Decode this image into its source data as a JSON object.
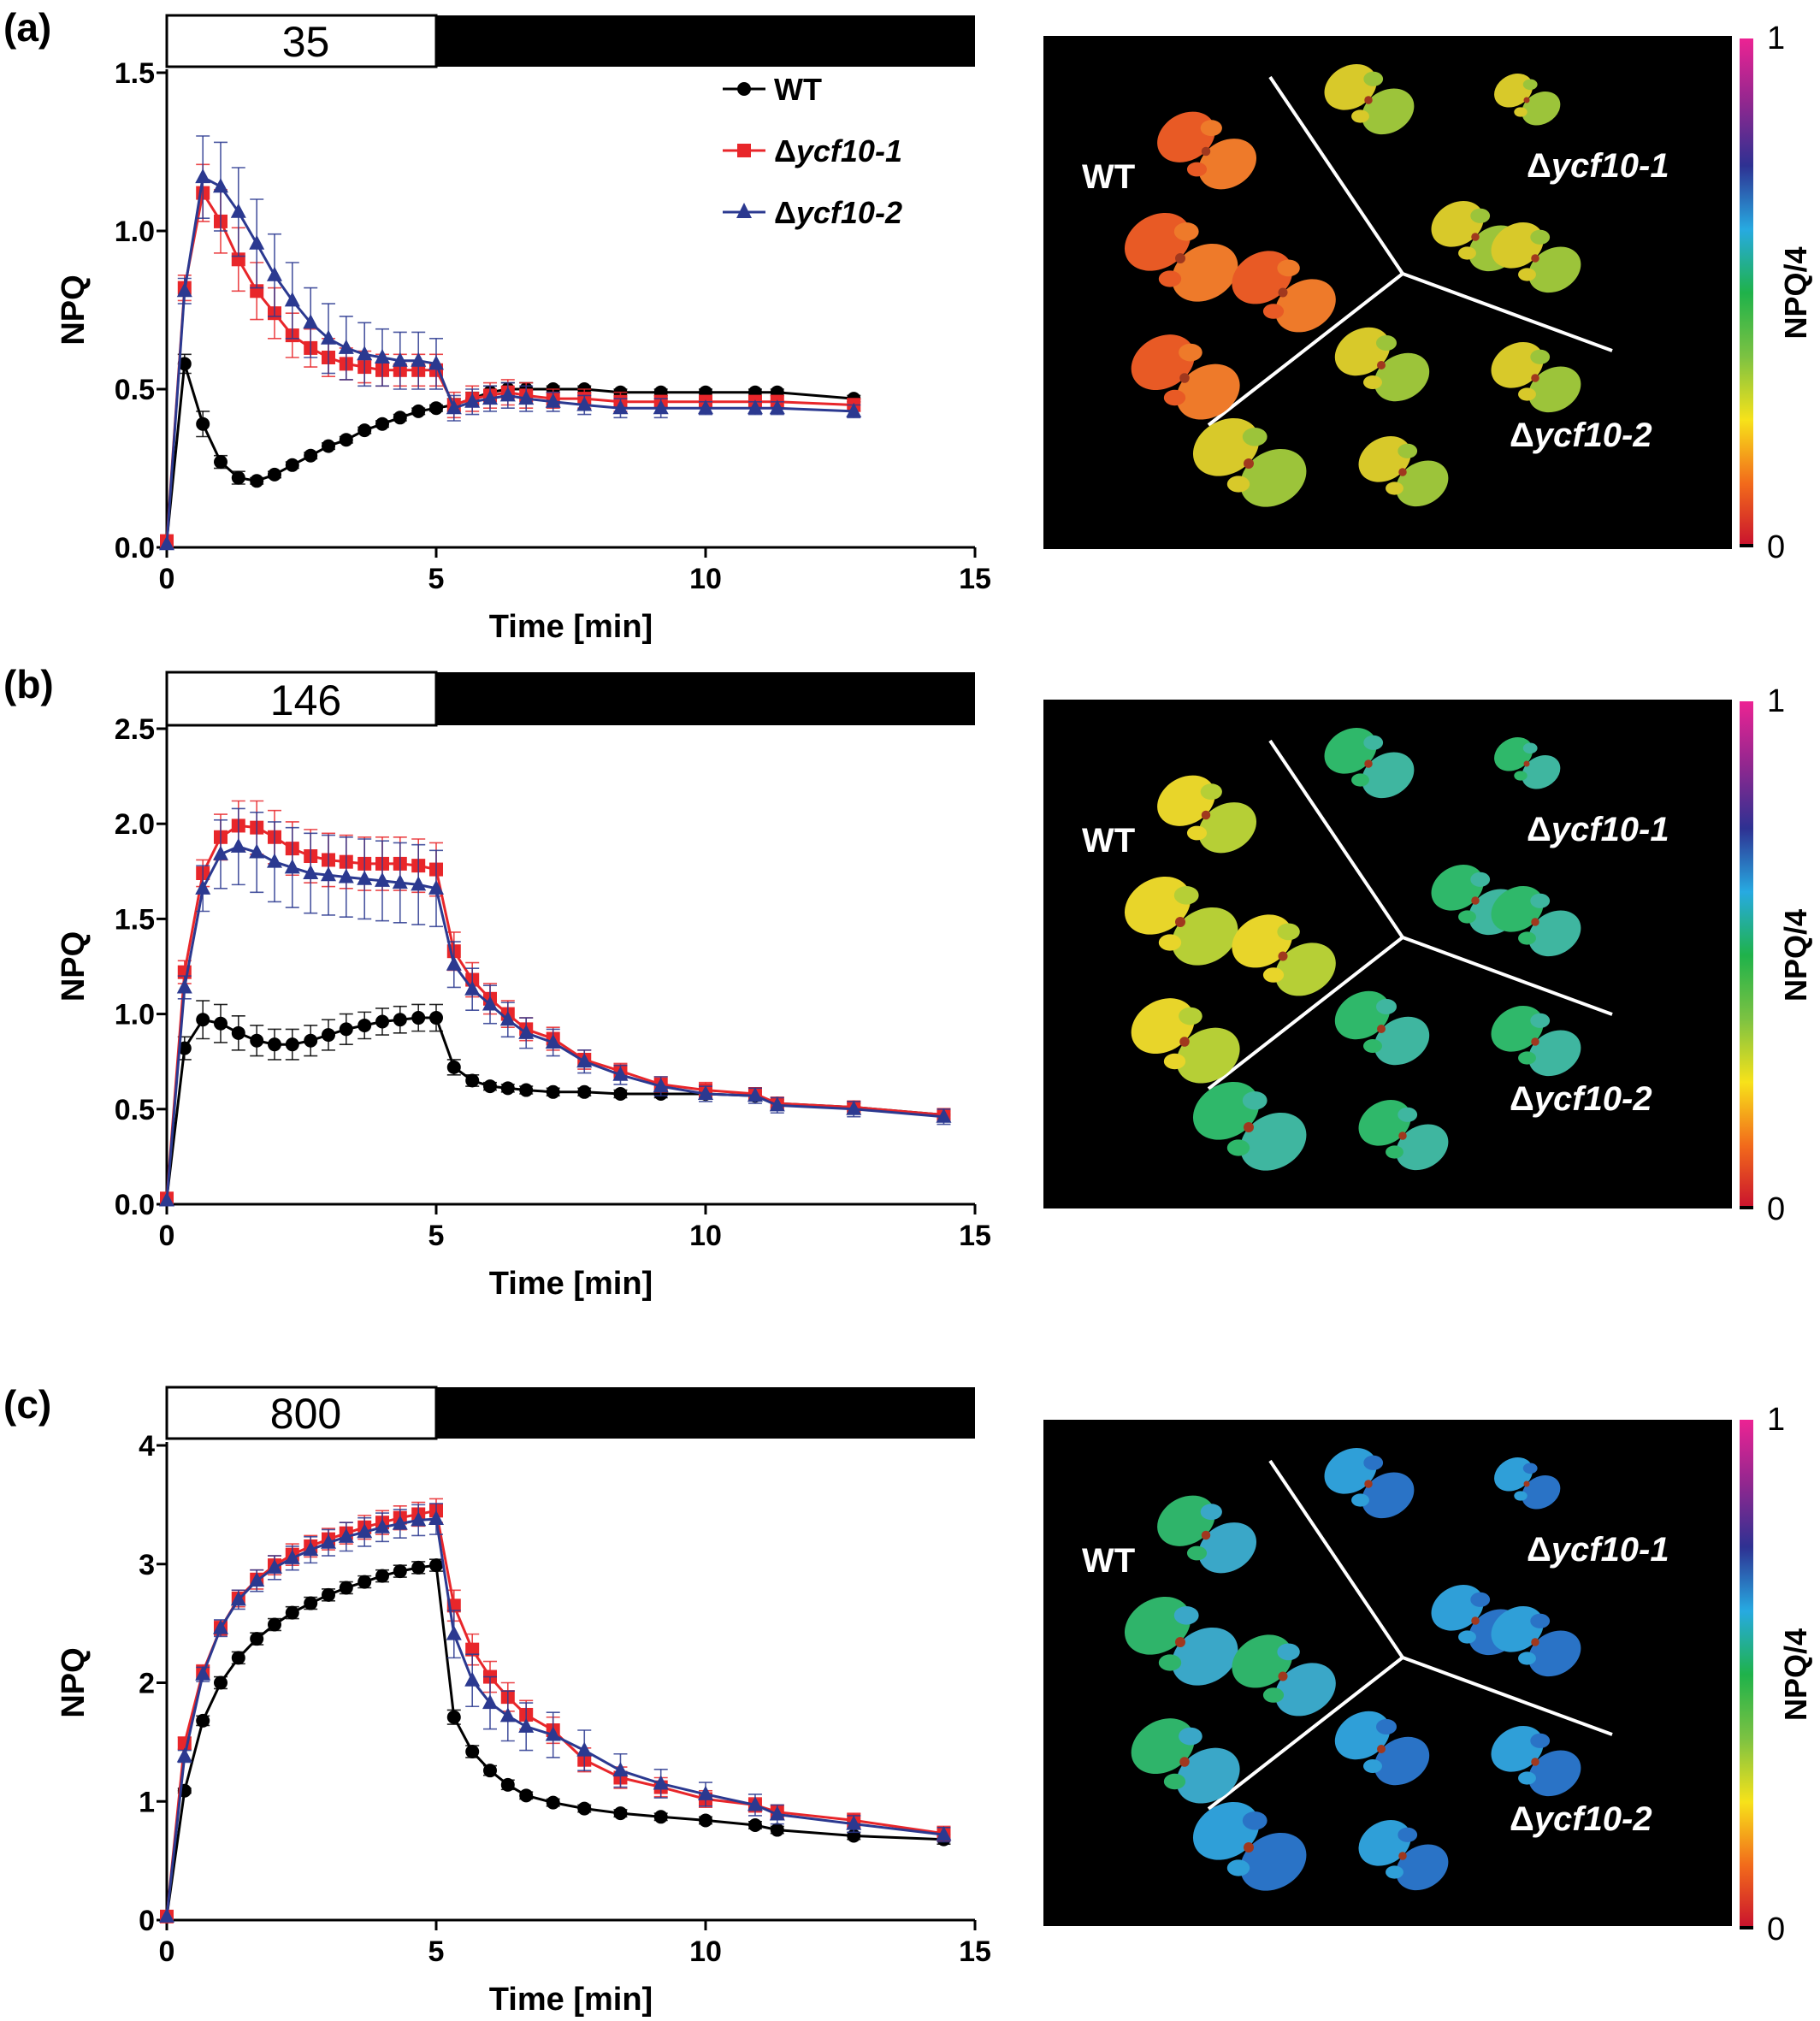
{
  "figure": {
    "colors": {
      "wt": "#000000",
      "ycf1": "#e8262a",
      "ycf2": "#2b3990",
      "background": "#ffffff"
    },
    "legend": [
      {
        "prefix": "",
        "text": "WT",
        "series": "wt"
      },
      {
        "prefix": "Δ",
        "text": "ycf10-1",
        "series": "ycf1"
      },
      {
        "prefix": "Δ",
        "text": "ycf10-2",
        "series": "ycf2"
      }
    ],
    "image_labels": {
      "wt": "WT",
      "ycf1": "Δycf10-1",
      "ycf2": "Δycf10-2"
    },
    "colorbar": {
      "label": "NPQ/4",
      "max_label": "1",
      "min_label": "0",
      "scale": [
        "#c8102e",
        "#f26a1b",
        "#f7e21a",
        "#7cc242",
        "#1fb24a",
        "#27aae1",
        "#2e3192",
        "#92278f",
        "#ec2393"
      ]
    }
  },
  "panels": [
    {
      "letter": "(a)",
      "light_label": "35",
      "image_palette": {
        "wt": [
          "#e85a25",
          "#ee7a2a"
        ],
        "mutant": [
          "#d8c92a",
          "#9cc43a"
        ]
      }
    },
    {
      "letter": "(b)",
      "light_label": "146",
      "image_palette": {
        "wt": [
          "#e8d52a",
          "#b6cf36"
        ],
        "mutant": [
          "#2fb86a",
          "#3fb6a0"
        ]
      }
    },
    {
      "letter": "(c)",
      "light_label": "800",
      "image_palette": {
        "wt": [
          "#2fb46a",
          "#3aa7c8"
        ],
        "mutant": [
          "#2f9fd8",
          "#2a73c6"
        ]
      }
    }
  ],
  "chart_data": [
    {
      "type": "line",
      "xlabel": "Time [min]",
      "ylabel": "NPQ",
      "xlim": [
        0,
        15
      ],
      "ylim": [
        0,
        1.5
      ],
      "xticks": [
        0,
        5,
        10,
        15
      ],
      "yticks": [
        0.0,
        0.5,
        1.0,
        1.5
      ],
      "ytick_labels": [
        "0.0",
        "0.5",
        "1.0",
        "1.5"
      ],
      "light_period": [
        0,
        5
      ],
      "series": [
        {
          "key": "wt",
          "name": "WT",
          "x": [
            0,
            0.33,
            0.67,
            1.0,
            1.33,
            1.67,
            2.0,
            2.33,
            2.67,
            3.0,
            3.33,
            3.67,
            4.0,
            4.33,
            4.67,
            5.0,
            5.33,
            5.67,
            6.0,
            6.33,
            6.67,
            7.17,
            7.75,
            8.42,
            9.17,
            10.0,
            10.92,
            11.33,
            12.75
          ],
          "y": [
            0.02,
            0.58,
            0.39,
            0.27,
            0.22,
            0.21,
            0.23,
            0.26,
            0.29,
            0.32,
            0.34,
            0.37,
            0.39,
            0.41,
            0.43,
            0.44,
            0.45,
            0.47,
            0.49,
            0.5,
            0.5,
            0.5,
            0.5,
            0.49,
            0.49,
            0.49,
            0.49,
            0.49,
            0.47
          ],
          "err": [
            0,
            0.03,
            0.04,
            0.02,
            0.02,
            0.01,
            0.01,
            0.01,
            0.01,
            0.01,
            0.01,
            0.01,
            0.01,
            0.01,
            0.01,
            0.01,
            0.02,
            0.02,
            0.02,
            0.02,
            0.02,
            0.01,
            0.01,
            0.01,
            0.01,
            0.01,
            0.01,
            0.01,
            0.01
          ]
        },
        {
          "key": "ycf1",
          "name": "Δycf10-1",
          "x": [
            0,
            0.33,
            0.67,
            1.0,
            1.33,
            1.67,
            2.0,
            2.33,
            2.67,
            3.0,
            3.33,
            3.67,
            4.0,
            4.33,
            4.67,
            5.0,
            5.33,
            5.67,
            6.0,
            6.33,
            6.67,
            7.17,
            7.75,
            8.42,
            9.17,
            10.0,
            10.92,
            11.33,
            12.75
          ],
          "y": [
            0.02,
            0.82,
            1.12,
            1.03,
            0.91,
            0.81,
            0.74,
            0.67,
            0.63,
            0.6,
            0.58,
            0.57,
            0.56,
            0.56,
            0.56,
            0.56,
            0.45,
            0.47,
            0.48,
            0.49,
            0.48,
            0.47,
            0.47,
            0.46,
            0.46,
            0.46,
            0.46,
            0.46,
            0.45
          ],
          "err": [
            0,
            0.04,
            0.09,
            0.1,
            0.1,
            0.09,
            0.08,
            0.07,
            0.06,
            0.06,
            0.05,
            0.05,
            0.05,
            0.05,
            0.05,
            0.05,
            0.04,
            0.04,
            0.04,
            0.04,
            0.04,
            0.03,
            0.03,
            0.03,
            0.02,
            0.02,
            0.02,
            0.02,
            0.02
          ]
        },
        {
          "key": "ycf2",
          "name": "Δycf10-2",
          "x": [
            0,
            0.33,
            0.67,
            1.0,
            1.33,
            1.67,
            2.0,
            2.33,
            2.67,
            3.0,
            3.33,
            3.67,
            4.0,
            4.33,
            4.67,
            5.0,
            5.33,
            5.67,
            6.0,
            6.33,
            6.67,
            7.17,
            7.75,
            8.42,
            9.17,
            10.0,
            10.92,
            11.33,
            12.75
          ],
          "y": [
            0.01,
            0.81,
            1.17,
            1.14,
            1.06,
            0.96,
            0.86,
            0.78,
            0.71,
            0.66,
            0.63,
            0.61,
            0.6,
            0.59,
            0.59,
            0.58,
            0.44,
            0.46,
            0.47,
            0.48,
            0.47,
            0.46,
            0.45,
            0.44,
            0.44,
            0.44,
            0.44,
            0.44,
            0.43
          ],
          "err": [
            0,
            0.04,
            0.13,
            0.14,
            0.14,
            0.14,
            0.13,
            0.12,
            0.11,
            0.11,
            0.1,
            0.1,
            0.09,
            0.09,
            0.09,
            0.08,
            0.04,
            0.04,
            0.04,
            0.04,
            0.04,
            0.03,
            0.03,
            0.03,
            0.03,
            0.02,
            0.02,
            0.02,
            0.02
          ]
        }
      ]
    },
    {
      "type": "line",
      "xlabel": "Time [min]",
      "ylabel": "NPQ",
      "xlim": [
        0,
        15
      ],
      "ylim": [
        0,
        2.5
      ],
      "xticks": [
        0,
        5,
        10,
        15
      ],
      "yticks": [
        0.0,
        0.5,
        1.0,
        1.5,
        2.0,
        2.5
      ],
      "ytick_labels": [
        "0.0",
        "0.5",
        "1.0",
        "1.5",
        "2.0",
        "2.5"
      ],
      "light_period": [
        0,
        5
      ],
      "series": [
        {
          "key": "wt",
          "name": "WT",
          "x": [
            0,
            0.33,
            0.67,
            1.0,
            1.33,
            1.67,
            2.0,
            2.33,
            2.67,
            3.0,
            3.33,
            3.67,
            4.0,
            4.33,
            4.67,
            5.0,
            5.33,
            5.67,
            6.0,
            6.33,
            6.67,
            7.17,
            7.75,
            8.42,
            9.17,
            10.0,
            10.92,
            11.33,
            12.75,
            14.42
          ],
          "y": [
            0.03,
            0.82,
            0.97,
            0.95,
            0.9,
            0.86,
            0.84,
            0.84,
            0.86,
            0.89,
            0.92,
            0.94,
            0.96,
            0.97,
            0.98,
            0.98,
            0.72,
            0.65,
            0.62,
            0.61,
            0.6,
            0.59,
            0.59,
            0.58,
            0.58,
            0.58,
            0.57,
            0.53,
            0.51,
            0.47
          ],
          "err": [
            0,
            0.06,
            0.1,
            0.1,
            0.09,
            0.08,
            0.08,
            0.08,
            0.08,
            0.08,
            0.08,
            0.07,
            0.07,
            0.07,
            0.07,
            0.07,
            0.04,
            0.03,
            0.02,
            0.02,
            0.02,
            0.02,
            0.02,
            0.02,
            0.02,
            0.02,
            0.02,
            0.02,
            0.02,
            0.02
          ]
        },
        {
          "key": "ycf1",
          "name": "Δycf10-1",
          "x": [
            0,
            0.33,
            0.67,
            1.0,
            1.33,
            1.67,
            2.0,
            2.33,
            2.67,
            3.0,
            3.33,
            3.67,
            4.0,
            4.33,
            4.67,
            5.0,
            5.33,
            5.67,
            6.0,
            6.33,
            6.67,
            7.17,
            7.75,
            8.42,
            9.17,
            10.0,
            10.92,
            11.33,
            12.75,
            14.42
          ],
          "y": [
            0.03,
            1.22,
            1.74,
            1.93,
            1.99,
            1.98,
            1.93,
            1.87,
            1.83,
            1.81,
            1.8,
            1.79,
            1.79,
            1.79,
            1.78,
            1.76,
            1.33,
            1.18,
            1.08,
            1.0,
            0.92,
            0.87,
            0.76,
            0.7,
            0.63,
            0.6,
            0.58,
            0.53,
            0.51,
            0.47
          ],
          "err": [
            0,
            0.06,
            0.07,
            0.12,
            0.13,
            0.14,
            0.14,
            0.14,
            0.14,
            0.14,
            0.14,
            0.14,
            0.14,
            0.14,
            0.14,
            0.14,
            0.1,
            0.09,
            0.08,
            0.07,
            0.06,
            0.06,
            0.05,
            0.04,
            0.04,
            0.04,
            0.03,
            0.03,
            0.03,
            0.03
          ]
        },
        {
          "key": "ycf2",
          "name": "Δycf10-2",
          "x": [
            0,
            0.33,
            0.67,
            1.0,
            1.33,
            1.67,
            2.0,
            2.33,
            2.67,
            3.0,
            3.33,
            3.67,
            4.0,
            4.33,
            4.67,
            5.0,
            5.33,
            5.67,
            6.0,
            6.33,
            6.67,
            7.17,
            7.75,
            8.42,
            9.17,
            10.0,
            10.92,
            11.33,
            12.75,
            14.42
          ],
          "y": [
            0.02,
            1.14,
            1.66,
            1.84,
            1.88,
            1.85,
            1.8,
            1.77,
            1.74,
            1.73,
            1.72,
            1.71,
            1.7,
            1.69,
            1.68,
            1.66,
            1.26,
            1.13,
            1.05,
            0.97,
            0.9,
            0.85,
            0.75,
            0.68,
            0.62,
            0.58,
            0.57,
            0.52,
            0.5,
            0.46
          ],
          "err": [
            0,
            0.06,
            0.12,
            0.18,
            0.2,
            0.21,
            0.21,
            0.21,
            0.21,
            0.21,
            0.21,
            0.21,
            0.21,
            0.21,
            0.21,
            0.2,
            0.12,
            0.11,
            0.1,
            0.09,
            0.08,
            0.07,
            0.06,
            0.05,
            0.05,
            0.04,
            0.04,
            0.04,
            0.04,
            0.04
          ]
        }
      ]
    },
    {
      "type": "line",
      "xlabel": "Time [min]",
      "ylabel": "NPQ",
      "xlim": [
        0,
        15
      ],
      "ylim": [
        0,
        4
      ],
      "xticks": [
        0,
        5,
        10,
        15
      ],
      "yticks": [
        0,
        1,
        2,
        3,
        4
      ],
      "ytick_labels": [
        "0",
        "1",
        "2",
        "3",
        "4"
      ],
      "light_period": [
        0,
        5
      ],
      "series": [
        {
          "key": "wt",
          "name": "WT",
          "x": [
            0,
            0.33,
            0.67,
            1.0,
            1.33,
            1.67,
            2.0,
            2.33,
            2.67,
            3.0,
            3.33,
            3.67,
            4.0,
            4.33,
            4.67,
            5.0,
            5.33,
            5.67,
            6.0,
            6.33,
            6.67,
            7.17,
            7.75,
            8.42,
            9.17,
            10.0,
            10.92,
            11.33,
            12.75,
            14.42
          ],
          "y": [
            0.03,
            1.09,
            1.68,
            2.0,
            2.21,
            2.37,
            2.49,
            2.59,
            2.67,
            2.74,
            2.8,
            2.85,
            2.9,
            2.94,
            2.97,
            2.99,
            1.71,
            1.42,
            1.26,
            1.14,
            1.05,
            0.99,
            0.94,
            0.9,
            0.87,
            0.84,
            0.8,
            0.76,
            0.71,
            0.68
          ],
          "err": [
            0,
            0.02,
            0.04,
            0.05,
            0.05,
            0.05,
            0.05,
            0.05,
            0.05,
            0.05,
            0.05,
            0.05,
            0.05,
            0.05,
            0.05,
            0.05,
            0.06,
            0.05,
            0.04,
            0.04,
            0.03,
            0.03,
            0.03,
            0.03,
            0.03,
            0.03,
            0.03,
            0.03,
            0.03,
            0.04
          ]
        },
        {
          "key": "ycf1",
          "name": "Δycf10-1",
          "x": [
            0,
            0.33,
            0.67,
            1.0,
            1.33,
            1.67,
            2.0,
            2.33,
            2.67,
            3.0,
            3.33,
            3.67,
            4.0,
            4.33,
            4.67,
            5.0,
            5.33,
            5.67,
            6.0,
            6.33,
            6.67,
            7.17,
            7.75,
            8.42,
            9.17,
            10.0,
            10.92,
            11.33,
            12.75,
            14.42
          ],
          "y": [
            0.03,
            1.49,
            2.09,
            2.46,
            2.71,
            2.87,
            2.99,
            3.08,
            3.15,
            3.21,
            3.26,
            3.31,
            3.35,
            3.39,
            3.42,
            3.45,
            2.65,
            2.28,
            2.05,
            1.88,
            1.73,
            1.6,
            1.35,
            1.2,
            1.12,
            1.02,
            0.97,
            0.91,
            0.84,
            0.73
          ],
          "err": [
            0,
            0.05,
            0.06,
            0.06,
            0.07,
            0.08,
            0.08,
            0.09,
            0.09,
            0.09,
            0.09,
            0.1,
            0.1,
            0.1,
            0.1,
            0.1,
            0.13,
            0.13,
            0.13,
            0.12,
            0.12,
            0.11,
            0.1,
            0.09,
            0.08,
            0.07,
            0.06,
            0.06,
            0.06,
            0.06
          ]
        },
        {
          "key": "ycf2",
          "name": "Δycf10-2",
          "x": [
            0,
            0.33,
            0.67,
            1.0,
            1.33,
            1.67,
            2.0,
            2.33,
            2.67,
            3.0,
            3.33,
            3.67,
            4.0,
            4.33,
            4.67,
            5.0,
            5.33,
            5.67,
            6.0,
            6.33,
            6.67,
            7.17,
            7.75,
            8.42,
            9.17,
            10.0,
            10.92,
            11.33,
            12.75,
            14.42
          ],
          "y": [
            0.03,
            1.38,
            2.07,
            2.46,
            2.7,
            2.86,
            2.97,
            3.05,
            3.12,
            3.18,
            3.23,
            3.27,
            3.31,
            3.34,
            3.37,
            3.38,
            2.41,
            2.02,
            1.83,
            1.72,
            1.63,
            1.56,
            1.43,
            1.26,
            1.15,
            1.06,
            0.97,
            0.89,
            0.81,
            0.72
          ],
          "err": [
            0,
            0.05,
            0.06,
            0.07,
            0.08,
            0.09,
            0.1,
            0.1,
            0.11,
            0.11,
            0.12,
            0.12,
            0.12,
            0.12,
            0.13,
            0.13,
            0.2,
            0.22,
            0.22,
            0.21,
            0.2,
            0.19,
            0.17,
            0.14,
            0.12,
            0.1,
            0.09,
            0.08,
            0.07,
            0.06
          ]
        }
      ]
    }
  ]
}
